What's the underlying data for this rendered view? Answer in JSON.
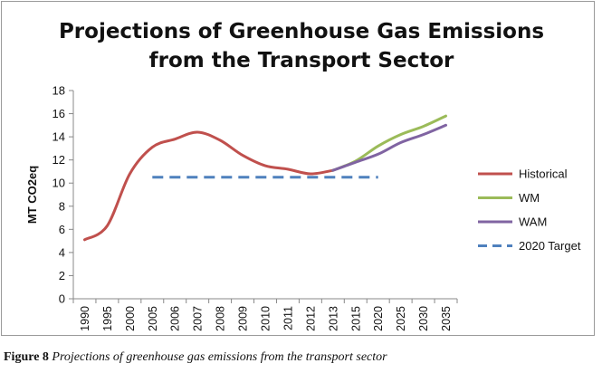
{
  "chart_data": {
    "type": "line",
    "title_lines": [
      "Projections of Greenhouse Gas Emissions",
      "from the Transport Sector"
    ],
    "ylabel": "MT CO2eq",
    "xlabel": "",
    "ylim": [
      0,
      18
    ],
    "yticks": [
      0,
      2,
      4,
      6,
      8,
      10,
      12,
      14,
      16,
      18
    ],
    "categories": [
      "1990",
      "1995",
      "2000",
      "2005",
      "2006",
      "2007",
      "2008",
      "2009",
      "2010",
      "2011",
      "2012",
      "2013",
      "2015",
      "2020",
      "2025",
      "2030",
      "2035"
    ],
    "series": [
      {
        "name": "Historical",
        "color": "#c0504d",
        "style": "solid",
        "values": [
          5.1,
          6.3,
          10.8,
          13.1,
          13.8,
          14.4,
          13.7,
          12.4,
          11.5,
          11.2,
          10.8,
          11.1,
          null,
          null,
          null,
          null,
          null
        ]
      },
      {
        "name": "WM",
        "color": "#9bbb59",
        "style": "solid",
        "values": [
          null,
          null,
          null,
          null,
          null,
          null,
          null,
          null,
          null,
          null,
          null,
          11.1,
          11.9,
          13.2,
          14.2,
          14.9,
          15.8
        ]
      },
      {
        "name": "WAM",
        "color": "#8064a2",
        "style": "solid",
        "values": [
          null,
          null,
          null,
          null,
          null,
          null,
          null,
          null,
          null,
          null,
          null,
          11.1,
          11.8,
          12.5,
          13.5,
          14.2,
          15.0
        ]
      },
      {
        "name": "2020 Target",
        "color": "#4f81bd",
        "style": "dashed",
        "values": [
          null,
          null,
          null,
          10.5,
          10.5,
          10.5,
          10.5,
          10.5,
          10.5,
          10.5,
          10.5,
          10.5,
          10.5,
          10.5,
          null,
          null,
          null
        ]
      }
    ],
    "legend_position": "right",
    "grid": false
  },
  "caption": {
    "label": "Figure 8",
    "text": "Projections of greenhouse gas emissions from the transport sector"
  }
}
